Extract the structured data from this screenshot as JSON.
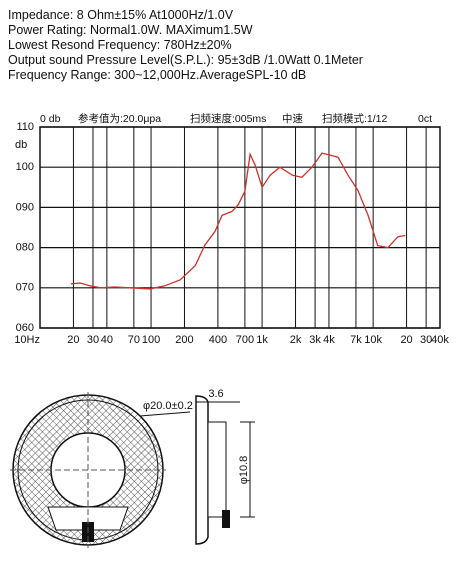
{
  "specs": [
    "Impedance: 8 Ohm±15%  At1000Hz/1.0V",
    "Power Rating: Normal1.0W. MAXimum1.5W",
    "Lowest Resond Frequency: 780Hz±20%",
    "Output sound Pressure Level(S.P.L.): 95±3dB /1.0Watt 0.1Meter",
    "Frequency Range: 300~12,000Hz.AverageSPL-10 dB"
  ],
  "chart_data": {
    "type": "line",
    "annotations": [
      "0 db",
      "参考值为:20.0μpa",
      "扫频速度:005ms",
      "中速",
      "扫频模式:1/12",
      "0ct"
    ],
    "ylabel": "db",
    "log_x": true,
    "grid": true,
    "xlim": [
      10,
      40000
    ],
    "xticks": [
      {
        "value": 10,
        "label": "10Hz"
      },
      20,
      30,
      40,
      70,
      100,
      200,
      400,
      700,
      {
        "value": 1000,
        "label": "1k"
      },
      {
        "value": 2000,
        "label": "2k"
      },
      {
        "value": 3000,
        "label": "3k"
      },
      {
        "value": 4000,
        "label": "4k"
      },
      {
        "value": 7000,
        "label": "7k"
      },
      {
        "value": 10000,
        "label": "10k"
      },
      {
        "value": 20000,
        "label": "20"
      },
      {
        "value": 30000,
        "label": "30"
      },
      {
        "value": 40000,
        "label": "40k"
      }
    ],
    "ylim": [
      60,
      110
    ],
    "yticks": [
      {
        "value": 60,
        "label": "060"
      },
      {
        "value": 70,
        "label": "070"
      },
      {
        "value": 80,
        "label": "080"
      },
      {
        "value": 90,
        "label": "090"
      },
      100,
      110
    ],
    "x": [
      19,
      23,
      28,
      35,
      47,
      65,
      98,
      133,
      183,
      250,
      306,
      377,
      435,
      536,
      610,
      700,
      780,
      867,
      1000,
      1180,
      1450,
      1870,
      2280,
      2810,
      3460,
      4090,
      4830,
      5940,
      7300,
      9000,
      11000,
      13600,
      16700,
      19400
    ],
    "series": [
      {
        "color": "#d0302a",
        "values": [
          71,
          71.2,
          70.5,
          70,
          70.2,
          70,
          69.7,
          70.5,
          72,
          75.5,
          80.7,
          84,
          88,
          89,
          90.7,
          94,
          103.2,
          100.5,
          95,
          98,
          100,
          98,
          97.5,
          100,
          103.5,
          103,
          102.5,
          98,
          94.2,
          88,
          80.5,
          80,
          82.7,
          83
        ]
      }
    ]
  },
  "diagram": {
    "outer_diameter": "φ20.0±0.2",
    "thickness": "3.6",
    "inner_diameter": "φ10.8"
  }
}
